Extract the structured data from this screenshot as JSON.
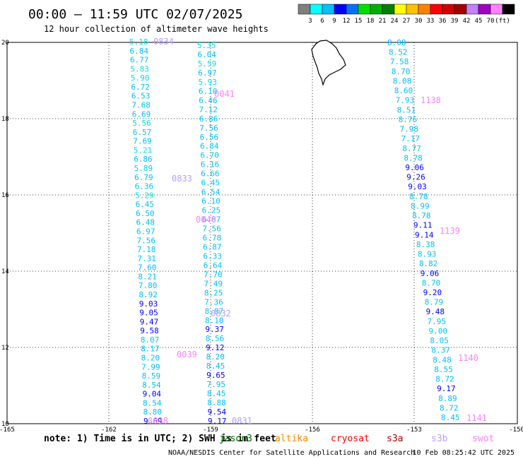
{
  "header": {
    "title": "00:00 – 11:59 UTC 02/07/2025",
    "subtitle": "12 hour collection of altimeter wave heights"
  },
  "legend": {
    "colors": [
      "#808080",
      "#00ffff",
      "#00c0ff",
      "#0000ff",
      "#0070ff",
      "#00e000",
      "#00b000",
      "#008000",
      "#ffff00",
      "#ffc000",
      "#ff8000",
      "#ff0000",
      "#d00000",
      "#a00000",
      "#c080ff",
      "#a000c0",
      "#ff80ff",
      "#000000"
    ],
    "labels": [
      "3",
      "6",
      "9",
      "12",
      "15",
      "18",
      "21",
      "24",
      "27",
      "30",
      "33",
      "36",
      "39",
      "42",
      "45",
      "70",
      "(ft)"
    ]
  },
  "axes": {
    "x_ticks": [
      "-165",
      "-162",
      "-159",
      "-156",
      "-153",
      "-150"
    ],
    "y_ticks": [
      "20",
      "18",
      "16",
      "14",
      "12",
      "10"
    ]
  },
  "footer": {
    "note": "note: 1) Time is in UTC; 2) SWH is in feet",
    "satellites": [
      {
        "name": "jason3",
        "color": "#006000"
      },
      {
        "name": "altika",
        "color": "#ff8800"
      },
      {
        "name": "cryosat",
        "color": "#ff0000"
      },
      {
        "name": "s3a",
        "color": "#b00000"
      },
      {
        "name": "s3b",
        "color": "#c0a0ff"
      },
      {
        "name": "swot",
        "color": "#ff80ff"
      }
    ],
    "credit": "NOAA/NESDIS Center for Satellite Applications and Research",
    "timestamp": "10 Feb 08:25:42 UTC 2025"
  },
  "tracks": {
    "track_a": {
      "values": [
        "5.18",
        "6.84",
        "6.77",
        "5.83",
        "5.90",
        "6.72",
        "6.53",
        "7.68",
        "6.69",
        "5.56",
        "6.57",
        "7.69",
        "5.21",
        "6.86",
        "5.89",
        "6.79",
        "6.36",
        "5.29",
        "6.45",
        "6.50",
        "6.48",
        "6.97",
        "7.56",
        "7.18",
        "7.31",
        "7.60",
        "8.21",
        "7.80",
        "8.92",
        "9.03",
        "9.05",
        "9.47",
        "9.58",
        "8.07",
        "8.17",
        "8.20",
        "7.99",
        "8.59",
        "8.54",
        "9.04",
        "8.54",
        "8.80",
        "9.69"
      ],
      "colors": [
        "#00e0e0",
        "#00c0ff",
        "#00c0ff",
        "#00e0e0",
        "#00e0e0",
        "#00c0ff",
        "#00c0ff",
        "#00c0ff",
        "#00c0ff",
        "#00e0e0",
        "#00c0ff",
        "#00c0ff",
        "#00e0e0",
        "#00c0ff",
        "#00e0e0",
        "#00c0ff",
        "#00c0ff",
        "#00e0e0",
        "#00c0ff",
        "#00c0ff",
        "#00c0ff",
        "#00c0ff",
        "#00c0ff",
        "#00c0ff",
        "#00c0ff",
        "#00c0ff",
        "#00c0ff",
        "#00c0ff",
        "#00c0ff",
        "#0000ff",
        "#0000ff",
        "#0000ff",
        "#0000ff",
        "#00c0ff",
        "#00c0ff",
        "#00c0ff",
        "#00c0ff",
        "#00c0ff",
        "#00c0ff",
        "#0000ff",
        "#00c0ff",
        "#00c0ff",
        "#0000ff"
      ]
    },
    "track_b": {
      "values": [
        "5.35",
        "6.04",
        "5.59",
        "6.97",
        "5.93",
        "6.10",
        "6.46",
        "7.12",
        "6.86",
        "7.56",
        "6.56",
        "6.84",
        "6.70",
        "6.16",
        "6.66",
        "6.45",
        "6.54",
        "6.10",
        "6.25",
        "6.87",
        "7.56",
        "6.78",
        "6.87",
        "6.33",
        "6.64",
        "7.70",
        "7.49",
        "8.25",
        "7.36",
        "8.87",
        "8.10",
        "9.37",
        "8.56",
        "9.12",
        "8.20",
        "8.45",
        "9.65",
        "7.95",
        "8.45",
        "8.88",
        "9.54",
        "9.17"
      ],
      "colors": [
        "#00e0e0",
        "#00c0ff",
        "#00e0e0",
        "#00c0ff",
        "#00e0e0",
        "#00c0ff",
        "#00c0ff",
        "#00c0ff",
        "#00c0ff",
        "#00c0ff",
        "#00c0ff",
        "#00c0ff",
        "#00c0ff",
        "#00c0ff",
        "#00c0ff",
        "#00c0ff",
        "#00c0ff",
        "#00c0ff",
        "#00c0ff",
        "#00c0ff",
        "#00c0ff",
        "#00c0ff",
        "#00c0ff",
        "#00c0ff",
        "#00c0ff",
        "#00c0ff",
        "#00c0ff",
        "#00c0ff",
        "#00c0ff",
        "#00c0ff",
        "#00c0ff",
        "#0000ff",
        "#00c0ff",
        "#0000ff",
        "#00c0ff",
        "#00c0ff",
        "#0000ff",
        "#00c0ff",
        "#00c0ff",
        "#00c0ff",
        "#0000ff",
        "#0000ff"
      ]
    },
    "track_c": {
      "values": [
        "8.08",
        "8.52",
        "7.58",
        "8.70",
        "8.08",
        "8.60",
        "7.93",
        "8.51",
        "8.76",
        "7.98",
        "7.17",
        "8.77",
        "8.78",
        "9.06",
        "9.26",
        "9.03",
        "8.78",
        "8.99",
        "8.78",
        "9.11",
        "9.14",
        "8.38",
        "8.93",
        "8.82",
        "9.06",
        "8.70",
        "9.20",
        "8.79",
        "9.48",
        "7.95",
        "9.00",
        "8.05",
        "8.37",
        "8.48",
        "8.55",
        "8.72",
        "9.17",
        "8.89",
        "8.72",
        "8.45"
      ],
      "colors": [
        "#00c0ff",
        "#00c0ff",
        "#00c0ff",
        "#00c0ff",
        "#00c0ff",
        "#00c0ff",
        "#00c0ff",
        "#00c0ff",
        "#00c0ff",
        "#00c0ff",
        "#00c0ff",
        "#00c0ff",
        "#00c0ff",
        "#0000ff",
        "#0000ff",
        "#0000ff",
        "#00c0ff",
        "#00c0ff",
        "#00c0ff",
        "#0000ff",
        "#0000ff",
        "#00c0ff",
        "#00c0ff",
        "#00c0ff",
        "#0000ff",
        "#00c0ff",
        "#0000ff",
        "#00c0ff",
        "#0000ff",
        "#00c0ff",
        "#00c0ff",
        "#00c0ff",
        "#00c0ff",
        "#00c0ff",
        "#00c0ff",
        "#00c0ff",
        "#0000ff",
        "#00c0ff",
        "#00c0ff",
        "#00c0ff"
      ]
    }
  },
  "time_labels": [
    {
      "text": "0834",
      "color": "#b0a0ff"
    },
    {
      "text": "0041",
      "color": "#ff80ff"
    },
    {
      "text": "1138",
      "color": "#ff80ff"
    },
    {
      "text": "0833",
      "color": "#b0a0ff"
    },
    {
      "text": "0040",
      "color": "#ff80ff"
    },
    {
      "text": "1139",
      "color": "#ff80ff"
    },
    {
      "text": "0832",
      "color": "#b0a0ff"
    },
    {
      "text": "0039",
      "color": "#ff80ff"
    },
    {
      "text": "1140",
      "color": "#ff80ff"
    },
    {
      "text": "0038",
      "color": "#ff80ff"
    },
    {
      "text": "0831",
      "color": "#b0a0ff"
    },
    {
      "text": "1141",
      "color": "#ff80ff"
    }
  ]
}
